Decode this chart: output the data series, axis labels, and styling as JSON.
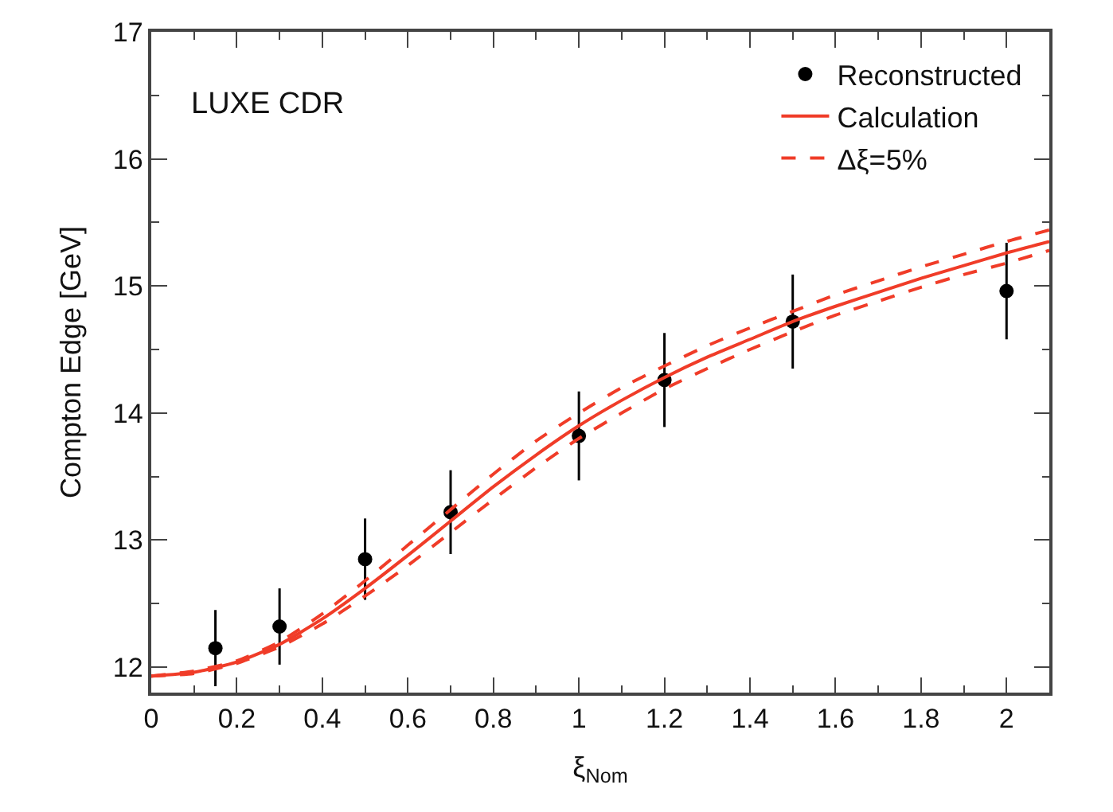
{
  "chart_data": {
    "type": "scatter",
    "xlabel": "ξ$_{Nom}$",
    "ylabel": "Compton Edge [GeV]",
    "annotations": [
      "LUXE CDR"
    ],
    "xlim": [
      0,
      2.1
    ],
    "ylim": [
      11.8,
      17
    ],
    "xticks": [
      0,
      0.2,
      0.4,
      0.6,
      0.8,
      1,
      1.2,
      1.4,
      1.6,
      1.8,
      2
    ],
    "yticks": [
      12,
      13,
      14,
      15,
      16,
      17
    ],
    "legend": "top right",
    "series": [
      {
        "name": "Reconstructed",
        "marker": "circle",
        "color": "#000000",
        "x": [
          0.15,
          0.3,
          0.5,
          0.7,
          1.0,
          1.2,
          1.5,
          2.0
        ],
        "values": [
          12.15,
          12.32,
          12.85,
          13.22,
          13.82,
          14.26,
          14.72,
          14.96
        ],
        "errors": [
          0.3,
          0.3,
          0.32,
          0.33,
          0.35,
          0.37,
          0.37,
          0.38
        ]
      },
      {
        "name": "Calculation",
        "type": "line",
        "marker": "none",
        "line_style": "solid",
        "color": "#f03c28",
        "x": [
          0,
          0.1,
          0.2,
          0.3,
          0.4,
          0.5,
          0.6,
          0.7,
          0.8,
          0.9,
          1.0,
          1.1,
          1.2,
          1.3,
          1.4,
          1.5,
          1.6,
          1.7,
          1.8,
          1.9,
          2.0,
          2.1
        ],
        "values": [
          11.93,
          11.96,
          12.04,
          12.18,
          12.38,
          12.62,
          12.88,
          13.15,
          13.42,
          13.67,
          13.9,
          14.1,
          14.28,
          14.44,
          14.58,
          14.72,
          14.84,
          14.95,
          15.06,
          15.16,
          15.26,
          15.35
        ]
      },
      {
        "name": "Δξ=5%",
        "type": "line",
        "marker": "none",
        "line_style": "dashed",
        "color": "#f03c28",
        "x": [
          0,
          0.1,
          0.2,
          0.3,
          0.4,
          0.5,
          0.6,
          0.7,
          0.8,
          0.9,
          1.0,
          1.1,
          1.2,
          1.3,
          1.4,
          1.5,
          1.6,
          1.7,
          1.8,
          1.9,
          2.0,
          2.1
        ],
        "values": [
          11.93,
          11.97,
          12.05,
          12.2,
          12.42,
          12.68,
          12.96,
          13.24,
          13.52,
          13.78,
          14.0,
          14.2,
          14.37,
          14.53,
          14.67,
          14.8,
          14.93,
          15.04,
          15.15,
          15.25,
          15.35,
          15.44
        ]
      },
      {
        "type": "line",
        "marker": "none",
        "line_style": "dashed",
        "color": "#f03c28",
        "x": [
          0,
          0.1,
          0.2,
          0.3,
          0.4,
          0.5,
          0.6,
          0.7,
          0.8,
          0.9,
          1.0,
          1.1,
          1.2,
          1.3,
          1.4,
          1.5,
          1.6,
          1.7,
          1.8,
          1.9,
          2.0,
          2.1
        ],
        "values": [
          11.93,
          11.95,
          12.03,
          12.16,
          12.34,
          12.56,
          12.8,
          13.06,
          13.32,
          13.57,
          13.8,
          14.0,
          14.19,
          14.35,
          14.5,
          14.64,
          14.77,
          14.88,
          14.99,
          15.09,
          15.18,
          15.28
        ]
      }
    ]
  }
}
